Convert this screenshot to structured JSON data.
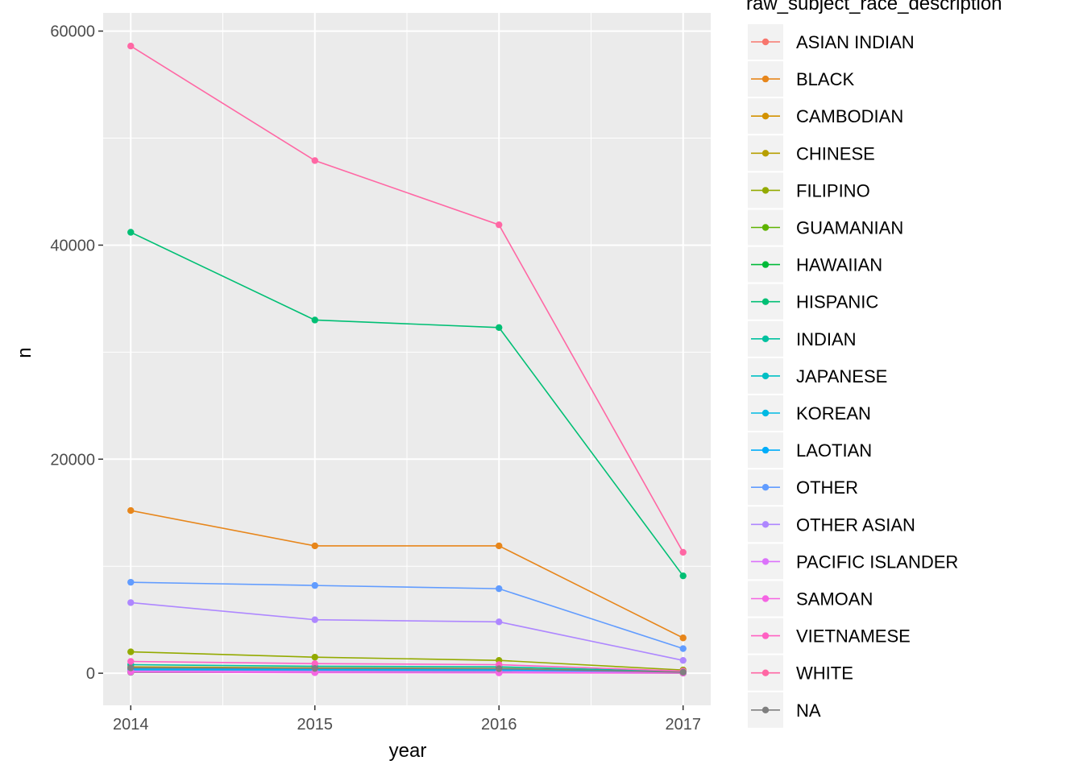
{
  "chart_data": {
    "type": "line",
    "title": "",
    "xlabel": "year",
    "ylabel": "n",
    "x": [
      2014,
      2015,
      2016,
      2017
    ],
    "x_ticks": [
      "2014",
      "2015",
      "2016",
      "2017"
    ],
    "y_ticks": [
      0,
      20000,
      40000,
      60000
    ],
    "y_tick_labels": [
      "0",
      "20000",
      "40000",
      "60000"
    ],
    "ylim": [
      -3000,
      61700
    ],
    "xlim": [
      2013.85,
      2017.15
    ],
    "grid": true,
    "panel_background": "#ebebeb",
    "legend": {
      "title": "raw_subject_race_description",
      "placement": "right"
    },
    "series": [
      {
        "name": "ASIAN INDIAN",
        "color": "#F8766D",
        "values": [
          150,
          120,
          110,
          30
        ]
      },
      {
        "name": "BLACK",
        "color": "#E7861B",
        "values": [
          15200,
          11900,
          11900,
          3300
        ]
      },
      {
        "name": "CAMBODIAN",
        "color": "#D39200",
        "values": [
          250,
          220,
          200,
          60
        ]
      },
      {
        "name": "CHINESE",
        "color": "#B79F00",
        "values": [
          600,
          500,
          450,
          120
        ]
      },
      {
        "name": "FILIPINO",
        "color": "#93AA00",
        "values": [
          2000,
          1500,
          1200,
          300
        ]
      },
      {
        "name": "GUAMANIAN",
        "color": "#5EB300",
        "values": [
          100,
          80,
          80,
          20
        ]
      },
      {
        "name": "HAWAIIAN",
        "color": "#00BA38",
        "values": [
          80,
          70,
          60,
          15
        ]
      },
      {
        "name": "HISPANIC",
        "color": "#00BF74",
        "values": [
          41200,
          33000,
          32300,
          9100
        ]
      },
      {
        "name": "INDIAN",
        "color": "#00C19F",
        "values": [
          800,
          650,
          600,
          150
        ]
      },
      {
        "name": "JAPANESE",
        "color": "#00BFC4",
        "values": [
          300,
          250,
          230,
          60
        ]
      },
      {
        "name": "KOREAN",
        "color": "#00B9E3",
        "values": [
          300,
          260,
          240,
          60
        ]
      },
      {
        "name": "LAOTIAN",
        "color": "#00ADFA",
        "values": [
          400,
          350,
          330,
          80
        ]
      },
      {
        "name": "OTHER",
        "color": "#619CFF",
        "values": [
          8500,
          8200,
          7900,
          2300
        ]
      },
      {
        "name": "OTHER ASIAN",
        "color": "#AE87FF",
        "values": [
          6600,
          5000,
          4800,
          1200
        ]
      },
      {
        "name": "PACIFIC ISLANDER",
        "color": "#DB72FB",
        "values": [
          200,
          180,
          160,
          40
        ]
      },
      {
        "name": "SAMOAN",
        "color": "#F564E3",
        "values": [
          100,
          50,
          30,
          10
        ]
      },
      {
        "name": "VIETNAMESE",
        "color": "#FF61C3",
        "values": [
          1100,
          900,
          800,
          200
        ]
      },
      {
        "name": "WHITE",
        "color": "#FF67A4",
        "values": [
          58600,
          47900,
          41900,
          11300
        ]
      },
      {
        "name": "NA",
        "color": "#7F7F7F",
        "values": [
          500,
          450,
          420,
          100
        ]
      }
    ]
  }
}
